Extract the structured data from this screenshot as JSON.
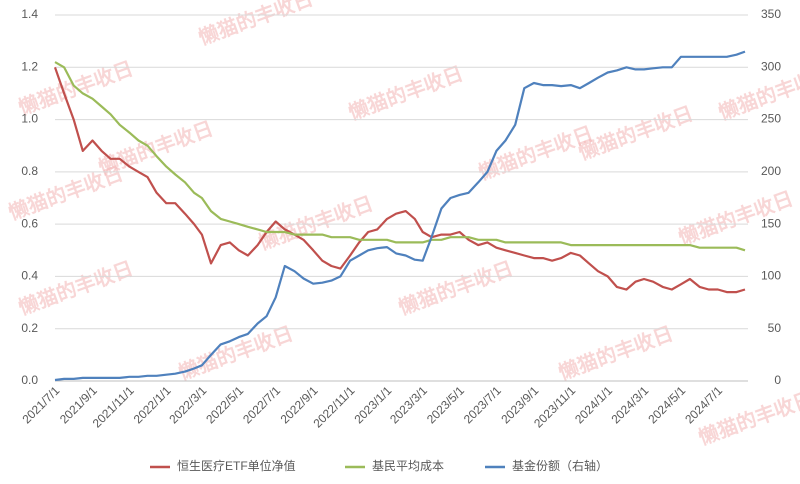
{
  "chart_data": {
    "type": "line",
    "watermark": "懒猫的丰收日",
    "x": [
      "2021/7/1",
      "2021/7/16",
      "2021/8/1",
      "2021/8/16",
      "2021/9/1",
      "2021/9/16",
      "2021/10/1",
      "2021/10/16",
      "2021/11/1",
      "2021/11/16",
      "2021/12/1",
      "2021/12/16",
      "2022/1/1",
      "2022/1/16",
      "2022/2/1",
      "2022/2/16",
      "2022/3/1",
      "2022/3/16",
      "2022/4/1",
      "2022/4/16",
      "2022/5/1",
      "2022/5/16",
      "2022/6/1",
      "2022/6/16",
      "2022/7/1",
      "2022/7/16",
      "2022/8/1",
      "2022/8/16",
      "2022/9/1",
      "2022/9/16",
      "2022/10/1",
      "2022/10/16",
      "2022/11/1",
      "2022/11/16",
      "2022/12/1",
      "2022/12/16",
      "2023/1/1",
      "2023/1/16",
      "2023/2/1",
      "2023/2/16",
      "2023/3/1",
      "2023/3/16",
      "2023/4/1",
      "2023/4/16",
      "2023/5/1",
      "2023/5/16",
      "2023/6/1",
      "2023/6/16",
      "2023/7/1",
      "2023/7/16",
      "2023/8/1",
      "2023/8/16",
      "2023/9/1",
      "2023/9/16",
      "2023/10/1",
      "2023/10/16",
      "2023/11/1",
      "2023/11/16",
      "2023/12/1",
      "2023/12/16",
      "2024/1/1",
      "2024/1/16",
      "2024/2/1",
      "2024/2/16",
      "2024/3/1",
      "2024/3/16",
      "2024/4/1",
      "2024/4/16",
      "2024/5/1",
      "2024/5/16",
      "2024/6/1",
      "2024/6/16",
      "2024/7/1",
      "2024/7/16",
      "2024/8/1",
      "2024/8/15"
    ],
    "xlim": [
      "2021/7/1",
      "2024/8/20"
    ],
    "xticks": [
      "2021/7/1",
      "2021/9/1",
      "2021/11/1",
      "2022/1/1",
      "2022/3/1",
      "2022/5/1",
      "2022/7/1",
      "2022/9/1",
      "2022/11/1",
      "2023/1/1",
      "2023/3/1",
      "2023/5/1",
      "2023/7/1",
      "2023/9/1",
      "2023/11/1",
      "2024/1/1",
      "2024/3/1",
      "2024/5/1",
      "2024/7/1"
    ],
    "ylim": [
      0,
      1.4
    ],
    "yticks": [
      {
        "value": 0,
        "label": "0.0"
      },
      0.2,
      0.4,
      0.6,
      0.8,
      {
        "value": 1,
        "label": "1.0"
      },
      1.2,
      1.4
    ],
    "y2lim": [
      0,
      350
    ],
    "y2ticks": [
      0,
      50,
      100,
      150,
      200,
      250,
      300,
      350
    ],
    "grid": true,
    "legend": "bottom",
    "series": [
      {
        "name": "恒生医疗ETF单位净值",
        "color": "#c0504d",
        "values": [
          1.2,
          1.1,
          1.0,
          0.88,
          0.92,
          0.88,
          0.85,
          0.85,
          0.82,
          0.8,
          0.78,
          0.72,
          0.68,
          0.68,
          0.64,
          0.6,
          0.56,
          0.45,
          0.52,
          0.53,
          0.5,
          0.48,
          0.52,
          0.57,
          0.61,
          0.58,
          0.56,
          0.54,
          0.5,
          0.46,
          0.44,
          0.43,
          0.48,
          0.53,
          0.57,
          0.58,
          0.62,
          0.64,
          0.65,
          0.62,
          0.57,
          0.55,
          0.56,
          0.56,
          0.57,
          0.54,
          0.52,
          0.53,
          0.51,
          0.5,
          0.49,
          0.48,
          0.47,
          0.47,
          0.46,
          0.47,
          0.49,
          0.48,
          0.45,
          0.42,
          0.4,
          0.36,
          0.35,
          0.38,
          0.39,
          0.38,
          0.36,
          0.35,
          0.37,
          0.39,
          0.36,
          0.35,
          0.35,
          0.34,
          0.34,
          0.35
        ]
      },
      {
        "name": "基民平均成本",
        "color": "#9bbb59",
        "values": [
          1.22,
          1.2,
          1.13,
          1.1,
          1.08,
          1.05,
          1.02,
          0.98,
          0.95,
          0.92,
          0.9,
          0.86,
          0.82,
          0.79,
          0.76,
          0.72,
          0.7,
          0.65,
          0.62,
          0.61,
          0.6,
          0.59,
          0.58,
          0.57,
          0.57,
          0.57,
          0.56,
          0.56,
          0.56,
          0.56,
          0.55,
          0.55,
          0.55,
          0.54,
          0.54,
          0.54,
          0.54,
          0.53,
          0.53,
          0.53,
          0.53,
          0.54,
          0.54,
          0.55,
          0.55,
          0.55,
          0.54,
          0.54,
          0.54,
          0.53,
          0.53,
          0.53,
          0.53,
          0.53,
          0.53,
          0.53,
          0.52,
          0.52,
          0.52,
          0.52,
          0.52,
          0.52,
          0.52,
          0.52,
          0.52,
          0.52,
          0.52,
          0.52,
          0.52,
          0.52,
          0.51,
          0.51,
          0.51,
          0.51,
          0.51,
          0.5
        ]
      },
      {
        "name": "基金份额（右轴）",
        "color": "#4f81bd",
        "axis": "y2",
        "values": [
          1,
          2,
          2,
          3,
          3,
          3,
          3,
          3,
          4,
          4,
          5,
          5,
          6,
          7,
          9,
          12,
          15,
          25,
          35,
          38,
          42,
          45,
          55,
          62,
          80,
          110,
          105,
          98,
          93,
          94,
          96,
          100,
          115,
          120,
          125,
          127,
          128,
          122,
          120,
          116,
          115,
          138,
          165,
          175,
          178,
          180,
          190,
          200,
          220,
          230,
          245,
          280,
          285,
          283,
          283,
          282,
          283,
          280,
          285,
          290,
          295,
          297,
          300,
          298,
          298,
          299,
          300,
          300,
          310,
          310,
          310,
          310,
          310,
          310,
          312,
          315
        ]
      }
    ]
  }
}
